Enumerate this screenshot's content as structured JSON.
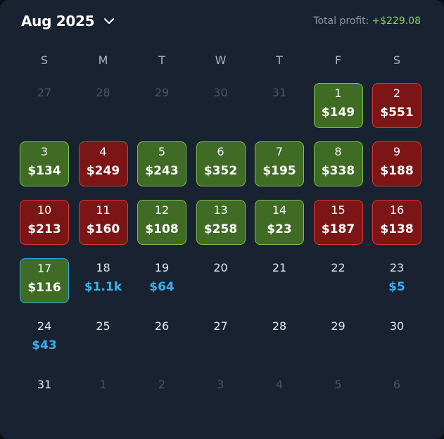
{
  "header": {
    "month_label": "Aug 2025",
    "profit_label": "Total profit:",
    "profit_value": "+$229.08"
  },
  "weekdays": [
    "S",
    "M",
    "T",
    "W",
    "T",
    "F",
    "S"
  ],
  "colors": {
    "win": "#3f6b24",
    "loss": "#7c1616",
    "today_border": "#32a9e6",
    "pending_text": "#3bb0f0"
  },
  "days": [
    {
      "day": "27",
      "kind": "muted"
    },
    {
      "day": "28",
      "kind": "muted"
    },
    {
      "day": "29",
      "kind": "muted"
    },
    {
      "day": "30",
      "kind": "muted"
    },
    {
      "day": "31",
      "kind": "muted"
    },
    {
      "day": "1",
      "kind": "green",
      "amount": "$149"
    },
    {
      "day": "2",
      "kind": "red",
      "amount": "$551"
    },
    {
      "day": "3",
      "kind": "green",
      "amount": "$134"
    },
    {
      "day": "4",
      "kind": "red",
      "amount": "$249"
    },
    {
      "day": "5",
      "kind": "green",
      "amount": "$243"
    },
    {
      "day": "6",
      "kind": "green",
      "amount": "$352"
    },
    {
      "day": "7",
      "kind": "green",
      "amount": "$195"
    },
    {
      "day": "8",
      "kind": "green",
      "amount": "$338"
    },
    {
      "day": "9",
      "kind": "red",
      "amount": "$188"
    },
    {
      "day": "10",
      "kind": "red",
      "amount": "$213"
    },
    {
      "day": "11",
      "kind": "red",
      "amount": "$160"
    },
    {
      "day": "12",
      "kind": "green",
      "amount": "$108"
    },
    {
      "day": "13",
      "kind": "green",
      "amount": "$258"
    },
    {
      "day": "14",
      "kind": "green",
      "amount": "$23"
    },
    {
      "day": "15",
      "kind": "red",
      "amount": "$187"
    },
    {
      "day": "16",
      "kind": "red",
      "amount": "$138"
    },
    {
      "day": "17",
      "kind": "green today",
      "amount": "$116"
    },
    {
      "day": "18",
      "kind": "plain",
      "amount": "$1.1k"
    },
    {
      "day": "19",
      "kind": "plain",
      "amount": "$64"
    },
    {
      "day": "20",
      "kind": "plain"
    },
    {
      "day": "21",
      "kind": "plain"
    },
    {
      "day": "22",
      "kind": "plain"
    },
    {
      "day": "23",
      "kind": "plain",
      "amount": "$5"
    },
    {
      "day": "24",
      "kind": "plain",
      "amount": "$43"
    },
    {
      "day": "25",
      "kind": "plain"
    },
    {
      "day": "26",
      "kind": "plain"
    },
    {
      "day": "27",
      "kind": "plain"
    },
    {
      "day": "28",
      "kind": "plain"
    },
    {
      "day": "29",
      "kind": "plain"
    },
    {
      "day": "30",
      "kind": "plain"
    },
    {
      "day": "31",
      "kind": "plain"
    },
    {
      "day": "1",
      "kind": "muted"
    },
    {
      "day": "2",
      "kind": "muted"
    },
    {
      "day": "3",
      "kind": "muted"
    },
    {
      "day": "4",
      "kind": "muted"
    },
    {
      "day": "5",
      "kind": "muted"
    },
    {
      "day": "6",
      "kind": "muted"
    }
  ]
}
